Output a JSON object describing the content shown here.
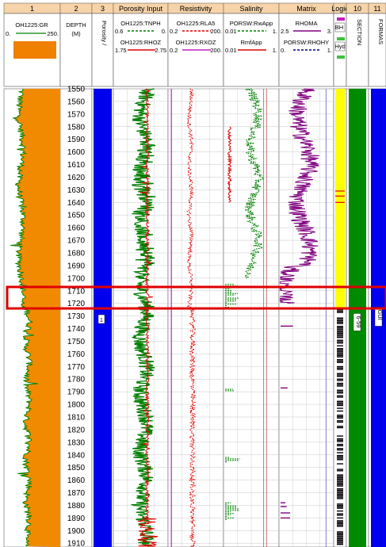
{
  "chart_data": {
    "type": "line",
    "depth_range": [
      1550,
      1913
    ],
    "depth_ticks": [
      1550,
      1560,
      1570,
      1580,
      1590,
      1600,
      1610,
      1620,
      1630,
      1640,
      1650,
      1660,
      1670,
      1680,
      1690,
      1700,
      1710,
      1720,
      1730,
      1740,
      1750,
      1760,
      1770,
      1780,
      1790,
      1800,
      1810,
      1820,
      1830,
      1840,
      1850,
      1860,
      1870,
      1880,
      1890,
      1900,
      1910
    ],
    "highlight_depth": [
      1707,
      1724
    ],
    "tracks": [
      {
        "num": "1",
        "header": [
          "OH1225:GR"
        ],
        "scale_min": "0.",
        "scale_max": "250."
      },
      {
        "num": "2",
        "header": [
          "DEPTH",
          "(M)"
        ]
      },
      {
        "num": "3",
        "header": [
          "Porosity /"
        ],
        "flag": "1"
      },
      {
        "num": "",
        "title": "Porosity Input",
        "curves": [
          {
            "name": "OH1225:TNPH",
            "min": "0.6",
            "max": "0.",
            "color": "#008000"
          },
          {
            "name": "OH1225:RHOZ",
            "min": "1.75",
            "max": "2.75",
            "color": "#e00000"
          }
        ]
      },
      {
        "num": "",
        "title": "Resistivity",
        "curves": [
          {
            "name": "OH1225:RLA5",
            "min": "0.2",
            "max": "200.",
            "color": "#e00000"
          },
          {
            "name": "OH1225:RXOZ",
            "min": "0.2",
            "max": "200.",
            "color": "#c020c0"
          }
        ]
      },
      {
        "num": "",
        "title": "Salinity",
        "curves": [
          {
            "name": "PORSW:RwApp",
            "min": "0.01",
            "max": "1.",
            "color": "#008000"
          },
          {
            "name": "RmfApp",
            "min": "0.01",
            "max": "1.",
            "color": "#e00000"
          }
        ]
      },
      {
        "num": "",
        "title": "Matrix",
        "curves": [
          {
            "name": "RHOMA",
            "min": "2.5",
            "max": "3.",
            "color": "#800080"
          },
          {
            "name": "PORSW:RHOHY",
            "min": "0.",
            "max": "1.",
            "color": "#000080"
          }
        ]
      },
      {
        "num": "",
        "title": "Logic",
        "legend": [
          "BH",
          "Hyd"
        ]
      },
      {
        "num": "10",
        "header": [
          "SECTION"
        ],
        "label": "6-59"
      },
      {
        "num": "11",
        "header": [
          "FORMAS"
        ],
        "label": "GUI"
      }
    ]
  }
}
